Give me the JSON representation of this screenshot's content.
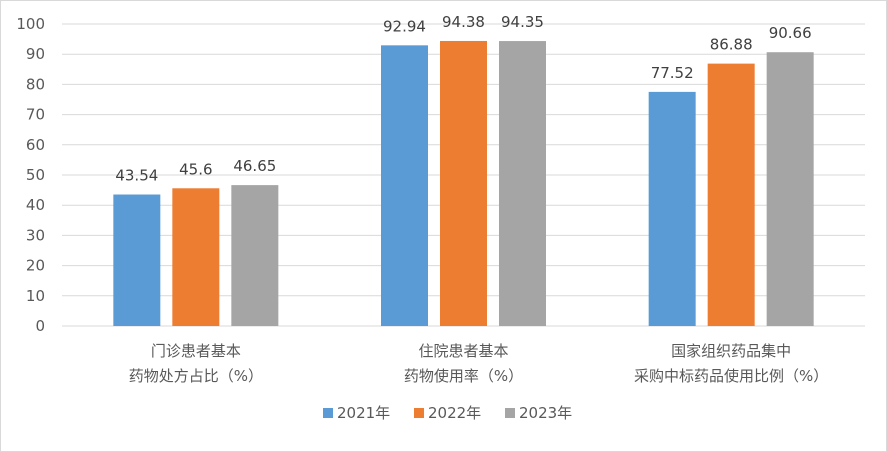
{
  "chart_data": {
    "type": "bar",
    "categories": [
      [
        "门诊患者基本",
        "药物处方占比（%）"
      ],
      [
        "住院患者基本",
        "药物使用率（%）"
      ],
      [
        "国家组织药品集中",
        "采购中标药品使用比例（%）"
      ]
    ],
    "series": [
      {
        "name": "2021年",
        "color": "#5b9bd5",
        "values": [
          43.54,
          92.94,
          77.52
        ]
      },
      {
        "name": "2022年",
        "color": "#ed7d31",
        "values": [
          45.6,
          94.38,
          86.88
        ]
      },
      {
        "name": "2023年",
        "color": "#a5a5a5",
        "values": [
          46.65,
          94.35,
          90.66
        ]
      }
    ],
    "ylim": [
      0,
      100
    ],
    "yticks": [
      0,
      10,
      20,
      30,
      40,
      50,
      60,
      70,
      80,
      90,
      100
    ],
    "grid": true,
    "legend": "bottom-center"
  }
}
